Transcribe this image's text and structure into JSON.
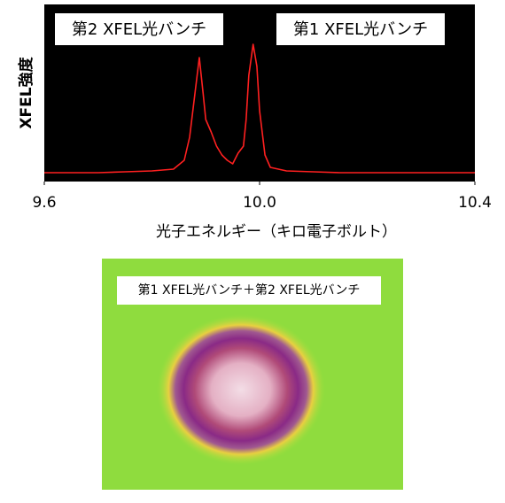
{
  "chart_data": {
    "type": "line",
    "x_label": "光子エネルギー（キロ電子ボルト）",
    "y_label": "XFEL強度",
    "annotations": [
      "第2 XFEL光バンチ",
      "第1 XFEL光バンチ"
    ],
    "xlim": [
      9.6,
      10.4
    ],
    "xticks": [
      9.6,
      {
        "value": 10,
        "label": "10.0"
      },
      10.4
    ],
    "ylim": [
      0,
      1
    ],
    "background": "#000000",
    "series": [
      {
        "color": "#ff2020",
        "x": [
          9.6,
          9.65,
          9.7,
          9.75,
          9.8,
          9.84,
          9.86,
          9.87,
          9.88,
          9.888,
          9.895,
          9.9,
          9.91,
          9.92,
          9.93,
          9.94,
          9.95,
          9.96,
          9.97,
          9.975,
          9.98,
          9.988,
          9.995,
          10.0,
          10.01,
          10.02,
          10.05,
          10.1,
          10.15,
          10.2,
          10.25,
          10.3,
          10.35,
          10.4
        ],
        "values": [
          0.05,
          0.05,
          0.05,
          0.055,
          0.06,
          0.07,
          0.12,
          0.25,
          0.5,
          0.7,
          0.5,
          0.35,
          0.28,
          0.2,
          0.15,
          0.12,
          0.1,
          0.16,
          0.2,
          0.35,
          0.6,
          0.775,
          0.65,
          0.4,
          0.15,
          0.08,
          0.06,
          0.055,
          0.05,
          0.05,
          0.05,
          0.05,
          0.05,
          0.05
        ]
      }
    ]
  },
  "image": {
    "caption": "第1 XFEL光バンチ＋第2 XFEL光バンチ"
  }
}
